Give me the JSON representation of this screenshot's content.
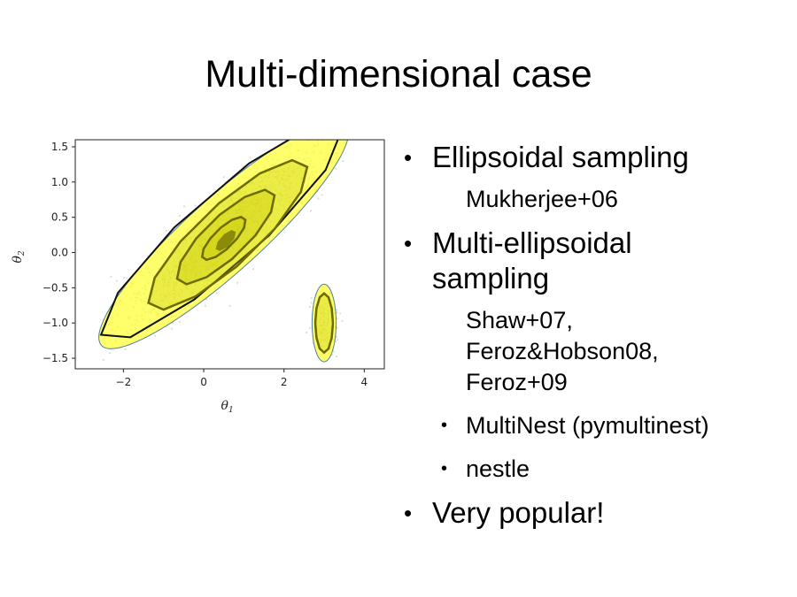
{
  "slide": {
    "title": "Multi-dimensional case"
  },
  "bullets": [
    {
      "text": "Ellipsoidal sampling",
      "level": 1
    },
    {
      "text": "Mukherjee+06",
      "level": "note"
    },
    {
      "text": "Multi-ellipsoidal\nsampling",
      "level": 1
    },
    {
      "text": "Shaw+07,\nFeroz&Hobson08,\nFeroz+09",
      "level": "note"
    },
    {
      "text": "MultiNest (pymultinest)",
      "level": 2
    },
    {
      "text": "nestle",
      "level": 2
    },
    {
      "text": "Very popular!",
      "level": 1
    }
  ],
  "chart_data": {
    "type": "scatter",
    "xlabel": "θ1",
    "ylabel": "θ2",
    "xlim": [
      -3.2,
      4.5
    ],
    "ylim": [
      -1.65,
      1.6
    ],
    "xticks": [
      "−2",
      "0",
      "2",
      "4"
    ],
    "xtick_values": [
      -2,
      0,
      2,
      4
    ],
    "yticks": [
      "1.5",
      "1.0",
      "0.5",
      "0.0",
      "−0.5",
      "−1.0",
      "−1.5"
    ],
    "ytick_values": [
      1.5,
      1.0,
      0.5,
      0.0,
      -0.5,
      -1.0,
      -1.5
    ],
    "grid": false,
    "colors": {
      "points": "#9a9a9a",
      "ellipse_fill": "#ffff33",
      "contour": "#6b6b00",
      "outline": "#111111"
    },
    "ellipses": [
      {
        "name": "main",
        "cx": 0.5,
        "cy": 0.25,
        "a": 3.45,
        "b": 0.63,
        "angle": 26
      },
      {
        "name": "small",
        "cx": 3.0,
        "cy": -1.0,
        "a": 0.55,
        "b": 0.3,
        "angle": 90
      }
    ],
    "contours": [
      {
        "cx": 0.6,
        "cy": 0.25,
        "a": 2.2,
        "b": 0.5,
        "angle": 26
      },
      {
        "cx": 0.55,
        "cy": 0.22,
        "a": 1.35,
        "b": 0.35,
        "angle": 26
      },
      {
        "cx": 0.5,
        "cy": 0.2,
        "a": 0.6,
        "b": 0.17,
        "angle": 26
      },
      {
        "cx": 3.0,
        "cy": -1.0,
        "a": 0.42,
        "b": 0.22,
        "angle": 90
      }
    ]
  }
}
